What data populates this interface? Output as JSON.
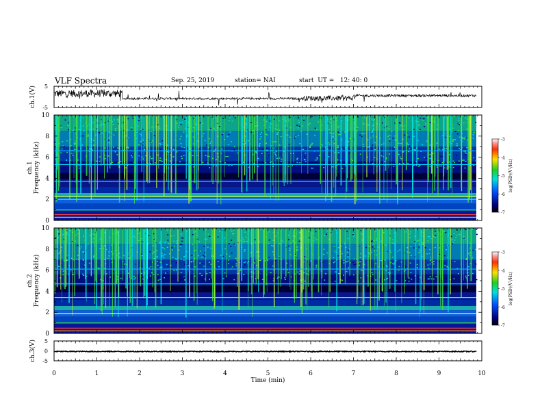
{
  "header": {
    "title": "VLF Spectra",
    "date": "Sep. 25, 2019",
    "station": "station= NAI",
    "start": "start  UT =   12: 40: 0"
  },
  "chart_data": [
    {
      "type": "line",
      "id": "ch1-waveform",
      "ylabel": "ch.1(V)",
      "ylim": [
        -5,
        5
      ],
      "y_ticklabels": [
        "5",
        "-5"
      ],
      "xlim": [
        0,
        10
      ]
    },
    {
      "type": "heatmap",
      "id": "ch1-spectrogram",
      "ylabel_ch": "ch.1",
      "ylabel": "Frequency (kHz)",
      "ylim": [
        0,
        10
      ],
      "y_ticklabels": [
        "0",
        "2",
        "4",
        "6",
        "8",
        "10"
      ],
      "xlim": [
        0,
        10
      ],
      "colorbar": {
        "label": "log(PSD)(V²/Hz)",
        "range": [
          -7,
          -3
        ],
        "ticklabels": [
          "-3",
          "-4",
          "-5",
          "-6",
          "-7"
        ]
      }
    },
    {
      "type": "heatmap",
      "id": "ch2-spectrogram",
      "ylabel_ch": "ch.2",
      "ylabel": "Frequency (kHz)",
      "ylim": [
        0,
        10
      ],
      "y_ticklabels": [
        "0",
        "2",
        "4",
        "6",
        "8",
        "10"
      ],
      "xlim": [
        0,
        10
      ],
      "colorbar": {
        "label": "log(PSD)(V²/Hz)",
        "range": [
          -7,
          -3
        ],
        "ticklabels": [
          "-3",
          "-4",
          "-5",
          "-6",
          "-7"
        ]
      }
    },
    {
      "type": "line",
      "id": "ch3-waveform",
      "ylabel": "ch.3(V)",
      "ylim": [
        -5,
        5
      ],
      "y_ticklabels": [
        "5",
        "0",
        "-5"
      ],
      "xlim": [
        0,
        10
      ]
    }
  ],
  "xaxis": {
    "label": "Time  (min)",
    "range": [
      0,
      10
    ],
    "ticklabels": [
      "0",
      "1",
      "2",
      "3",
      "4",
      "5",
      "6",
      "7",
      "8",
      "9",
      "10"
    ]
  }
}
